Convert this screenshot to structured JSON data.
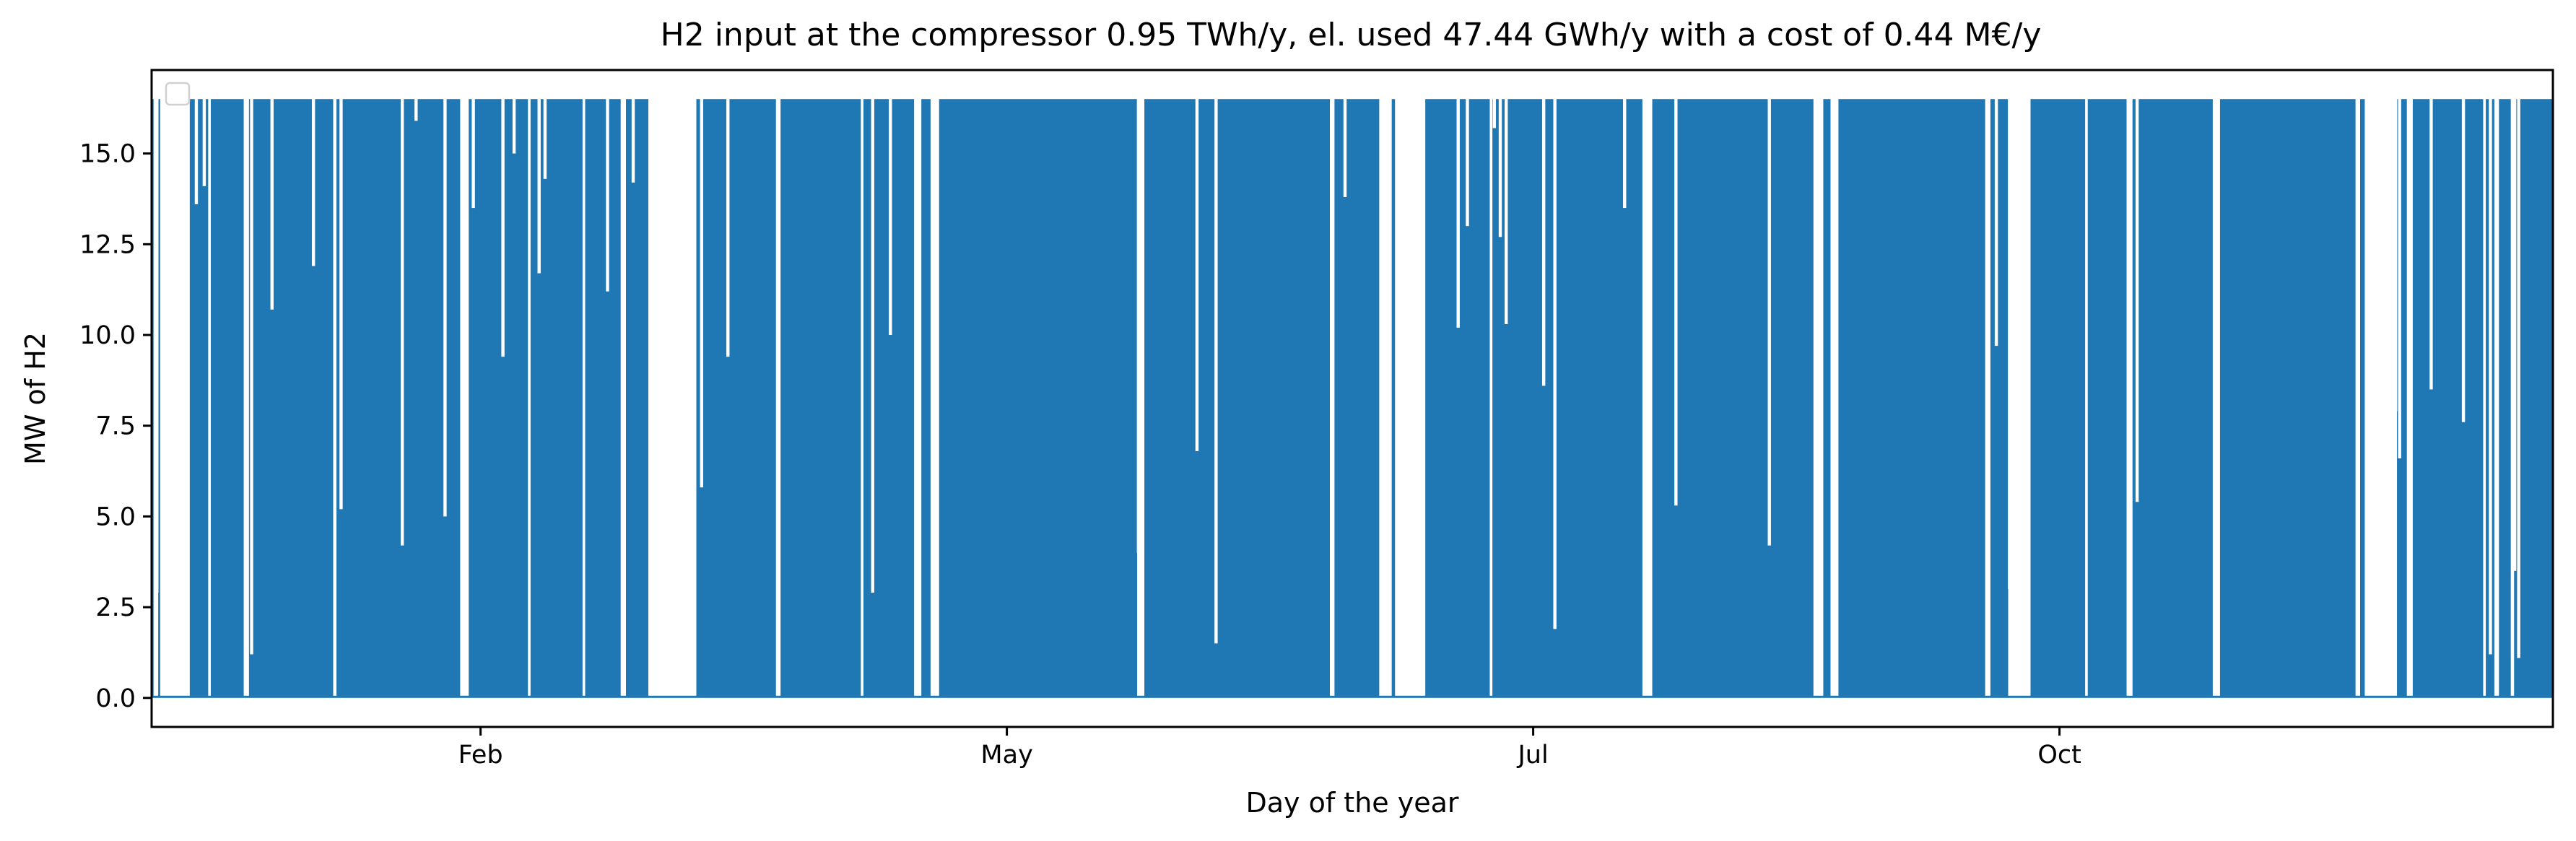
{
  "chart_data": {
    "type": "line",
    "title": "H2 input at the compressor 0.95 TWh/y, el. used 47.44 GWh/y with a cost of 0.44 M€/y",
    "xlabel": "Day of the year",
    "ylabel": "MW of H2",
    "xlim": [
      0,
      365
    ],
    "ylim": [
      -0.8,
      17.3
    ],
    "x_ticks": [
      {
        "label": "Feb",
        "value": 50
      },
      {
        "label": "May",
        "value": 130
      },
      {
        "label": "Jul",
        "value": 210
      },
      {
        "label": "Oct",
        "value": 290
      }
    ],
    "y_ticks": [
      0.0,
      2.5,
      5.0,
      7.5,
      10.0,
      12.5,
      15.0
    ],
    "y_tick_labels": [
      "0.0",
      "2.5",
      "5.0",
      "7.5",
      "10.0",
      "12.5",
      "15.0"
    ],
    "grid": false,
    "legend": {
      "placement": "top-left",
      "entries": []
    },
    "series": [
      {
        "color": "#1f77b4",
        "max_value": 16.5,
        "min_value": 0.0,
        "off_intervals_days": [
          [
            0.3,
            1.0
          ],
          [
            1.3,
            5.8
          ],
          [
            8.6,
            9.0
          ],
          [
            14.0,
            14.8
          ],
          [
            27.6,
            28.1
          ],
          [
            46.9,
            48.2
          ],
          [
            57.2,
            57.6
          ],
          [
            65.5,
            65.9
          ],
          [
            71.3,
            72.1
          ],
          [
            75.5,
            82.8
          ],
          [
            94.9,
            95.6
          ],
          [
            107.8,
            108.2
          ],
          [
            115.9,
            117.0
          ],
          [
            118.4,
            119.7
          ],
          [
            149.8,
            150.9
          ],
          [
            179.1,
            179.8
          ],
          [
            186.6,
            188.5
          ],
          [
            189.0,
            193.6
          ],
          [
            203.4,
            203.8
          ],
          [
            226.6,
            228.1
          ],
          [
            252.6,
            254.1
          ],
          [
            255.2,
            256.4
          ],
          [
            278.7,
            279.5
          ],
          [
            282.2,
            285.6
          ],
          [
            293.9,
            294.3
          ],
          [
            300.2,
            301.1
          ],
          [
            313.3,
            314.4
          ],
          [
            335.0,
            335.7
          ],
          [
            336.4,
            341.3
          ],
          [
            342.8,
            343.7
          ],
          [
            354.4,
            354.8
          ],
          [
            356.1,
            356.8
          ],
          [
            358.6,
            359.1
          ]
        ],
        "dips": [
          {
            "day": 0.8,
            "value": 2.9
          },
          {
            "day": 6.8,
            "value": 13.6
          },
          {
            "day": 8.0,
            "value": 14.1
          },
          {
            "day": 15.2,
            "value": 1.2
          },
          {
            "day": 18.3,
            "value": 10.7
          },
          {
            "day": 24.6,
            "value": 11.9
          },
          {
            "day": 28.8,
            "value": 5.2
          },
          {
            "day": 38.1,
            "value": 4.2
          },
          {
            "day": 40.2,
            "value": 15.9
          },
          {
            "day": 44.6,
            "value": 5.0
          },
          {
            "day": 48.9,
            "value": 13.5
          },
          {
            "day": 53.4,
            "value": 9.4
          },
          {
            "day": 55.1,
            "value": 15.0
          },
          {
            "day": 58.9,
            "value": 11.7
          },
          {
            "day": 59.8,
            "value": 14.3
          },
          {
            "day": 69.3,
            "value": 11.2
          },
          {
            "day": 73.2,
            "value": 14.2
          },
          {
            "day": 83.6,
            "value": 5.8
          },
          {
            "day": 87.6,
            "value": 9.4
          },
          {
            "day": 95.2,
            "value": 6.8
          },
          {
            "day": 109.6,
            "value": 2.9
          },
          {
            "day": 112.3,
            "value": 10.0
          },
          {
            "day": 150.0,
            "value": 4.0
          },
          {
            "day": 158.9,
            "value": 6.8
          },
          {
            "day": 161.8,
            "value": 1.5
          },
          {
            "day": 181.4,
            "value": 13.8
          },
          {
            "day": 188.1,
            "value": 5.8
          },
          {
            "day": 198.6,
            "value": 10.2
          },
          {
            "day": 200.0,
            "value": 13.0
          },
          {
            "day": 204.1,
            "value": 15.7
          },
          {
            "day": 205.0,
            "value": 12.7
          },
          {
            "day": 205.9,
            "value": 10.3
          },
          {
            "day": 211.6,
            "value": 8.6
          },
          {
            "day": 213.3,
            "value": 1.9
          },
          {
            "day": 223.9,
            "value": 13.5
          },
          {
            "day": 231.7,
            "value": 5.3
          },
          {
            "day": 245.9,
            "value": 4.2
          },
          {
            "day": 280.4,
            "value": 9.7
          },
          {
            "day": 282.4,
            "value": 3.0
          },
          {
            "day": 283.3,
            "value": 0.7
          },
          {
            "day": 301.8,
            "value": 5.4
          },
          {
            "day": 341.1,
            "value": 7.9
          },
          {
            "day": 341.7,
            "value": 6.6
          },
          {
            "day": 346.5,
            "value": 8.5
          },
          {
            "day": 351.4,
            "value": 7.6
          },
          {
            "day": 355.5,
            "value": 1.2
          },
          {
            "day": 359.2,
            "value": 3.5
          },
          {
            "day": 359.8,
            "value": 1.1
          }
        ]
      }
    ]
  }
}
